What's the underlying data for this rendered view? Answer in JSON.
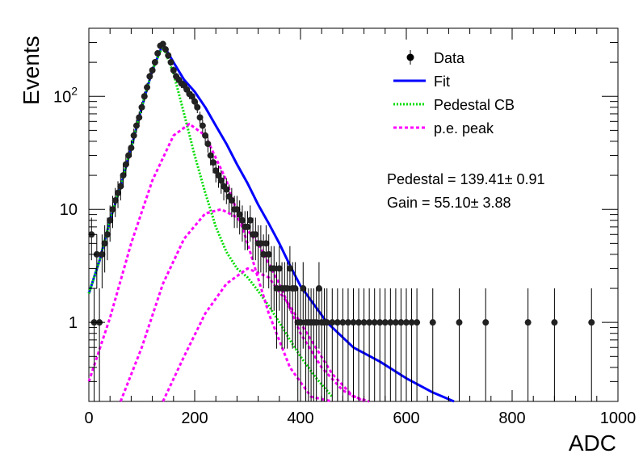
{
  "chart_data": {
    "type": "scatter",
    "xlabel": "ADC",
    "ylabel": "Events",
    "xlim": [
      0,
      1000
    ],
    "ylim": [
      0.2,
      400
    ],
    "y_scale": "log",
    "x_ticks": [
      0,
      200,
      400,
      600,
      800,
      1000
    ],
    "x_tick_labels": [
      "0",
      "200",
      "400",
      "600",
      "800",
      "1000"
    ],
    "y_ticks": [
      1,
      10,
      100
    ],
    "y_tick_labels": [
      "1",
      "10",
      "10^2"
    ],
    "legend_position": "top-right",
    "legend": [
      {
        "label": "Data",
        "style": "marker",
        "color": "#000000"
      },
      {
        "label": "Fit",
        "style": "solid",
        "color": "#0000ff"
      },
      {
        "label": "Pedestal CB",
        "style": "dotted",
        "color": "#00dd00"
      },
      {
        "label": "p.e. peak",
        "style": "dashed",
        "color": "#ff00ff"
      }
    ],
    "annotations": [
      {
        "text": "Pedestal = 139.41",
        "pm": "±",
        "err": " 0.91"
      },
      {
        "text": "Gain = 55.10",
        "pm": "±",
        "err": " 3.88"
      }
    ],
    "data_points": {
      "x": [
        5,
        10,
        15,
        20,
        25,
        30,
        35,
        40,
        45,
        50,
        55,
        60,
        65,
        70,
        75,
        80,
        85,
        90,
        95,
        100,
        105,
        110,
        115,
        120,
        125,
        130,
        135,
        140,
        145,
        150,
        155,
        160,
        165,
        170,
        175,
        180,
        185,
        190,
        195,
        200,
        205,
        210,
        215,
        220,
        225,
        230,
        235,
        240,
        245,
        250,
        255,
        260,
        265,
        270,
        275,
        280,
        285,
        290,
        295,
        300,
        305,
        310,
        315,
        320,
        325,
        330,
        335,
        340,
        345,
        350,
        355,
        360,
        365,
        370,
        375,
        380,
        385,
        390,
        395,
        400,
        405,
        410,
        415,
        420,
        425,
        430,
        435,
        440,
        445,
        450,
        460,
        470,
        480,
        490,
        500,
        510,
        520,
        530,
        540,
        550,
        560,
        570,
        580,
        590,
        600,
        610,
        620,
        650,
        700,
        750,
        830,
        880,
        950
      ],
      "y": [
        6,
        1,
        4,
        1,
        4,
        5,
        6,
        8,
        10,
        12,
        14,
        16,
        20,
        25,
        30,
        35,
        45,
        55,
        65,
        80,
        100,
        120,
        150,
        170,
        200,
        240,
        280,
        290,
        260,
        230,
        200,
        170,
        150,
        140,
        130,
        125,
        115,
        105,
        100,
        90,
        80,
        65,
        55,
        45,
        38,
        30,
        26,
        22,
        20,
        18,
        16,
        15,
        13,
        12,
        10,
        10,
        9,
        8,
        7,
        7,
        8,
        6,
        6,
        5,
        5,
        4,
        5,
        4,
        3,
        3,
        2,
        3,
        2,
        2,
        2,
        3,
        2,
        2,
        1,
        1,
        2,
        1,
        1,
        1,
        1,
        1,
        2,
        1,
        1,
        1,
        1,
        1,
        1,
        1,
        1,
        1,
        1,
        1,
        1,
        1,
        1,
        1,
        1,
        1,
        1,
        1,
        1,
        1,
        1,
        1,
        1,
        1,
        1
      ]
    },
    "series": [
      {
        "name": "Fit",
        "color": "#0000ff",
        "style": "solid",
        "x": [
          0,
          20,
          40,
          60,
          80,
          100,
          120,
          140,
          160,
          180,
          200,
          220,
          240,
          260,
          280,
          300,
          320,
          340,
          360,
          380,
          400,
          450,
          500,
          550,
          600,
          650,
          690
        ],
        "y": [
          1.8,
          3.5,
          8,
          16,
          35,
          80,
          170,
          290,
          200,
          140,
          110,
          80,
          55,
          38,
          25,
          17,
          11,
          7.5,
          5,
          3.2,
          2.1,
          1.0,
          0.6,
          0.45,
          0.32,
          0.24,
          0.2
        ]
      },
      {
        "name": "Pedestal CB",
        "color": "#00dd00",
        "style": "dotted",
        "x": [
          0,
          20,
          40,
          60,
          80,
          100,
          120,
          140,
          160,
          180,
          200,
          220,
          240,
          260,
          280,
          300,
          320,
          340,
          360,
          380,
          400,
          430,
          460
        ],
        "y": [
          1.8,
          3.5,
          8,
          16,
          35,
          80,
          170,
          280,
          160,
          70,
          30,
          14,
          7,
          4.2,
          3.0,
          2.5,
          1.9,
          1.4,
          1.0,
          0.7,
          0.5,
          0.32,
          0.22
        ]
      },
      {
        "name": "p.e. peak 1",
        "color": "#ff00ff",
        "style": "dashed",
        "x": [
          0,
          40,
          80,
          120,
          160,
          190,
          220,
          260,
          300,
          340,
          380,
          420,
          460
        ],
        "y": [
          0.3,
          1.1,
          5,
          18,
          45,
          57,
          45,
          18,
          5,
          1.2,
          0.4,
          0.22,
          0.2
        ]
      },
      {
        "name": "p.e. peak 2",
        "color": "#ff00ff",
        "style": "dashed",
        "x": [
          60,
          100,
          140,
          180,
          220,
          250,
          280,
          320,
          360,
          400,
          440,
          480,
          520
        ],
        "y": [
          0.2,
          0.6,
          2.2,
          5.5,
          9.2,
          10,
          8.5,
          5,
          2.2,
          0.8,
          0.4,
          0.25,
          0.2
        ]
      },
      {
        "name": "p.e. peak 3",
        "color": "#ff00ff",
        "style": "dashed",
        "x": [
          140,
          180,
          220,
          260,
          300,
          340,
          380,
          420,
          460,
          500,
          530
        ],
        "y": [
          0.2,
          0.5,
          1.2,
          2.2,
          3.0,
          2.5,
          1.4,
          0.7,
          0.35,
          0.22,
          0.2
        ]
      }
    ]
  }
}
